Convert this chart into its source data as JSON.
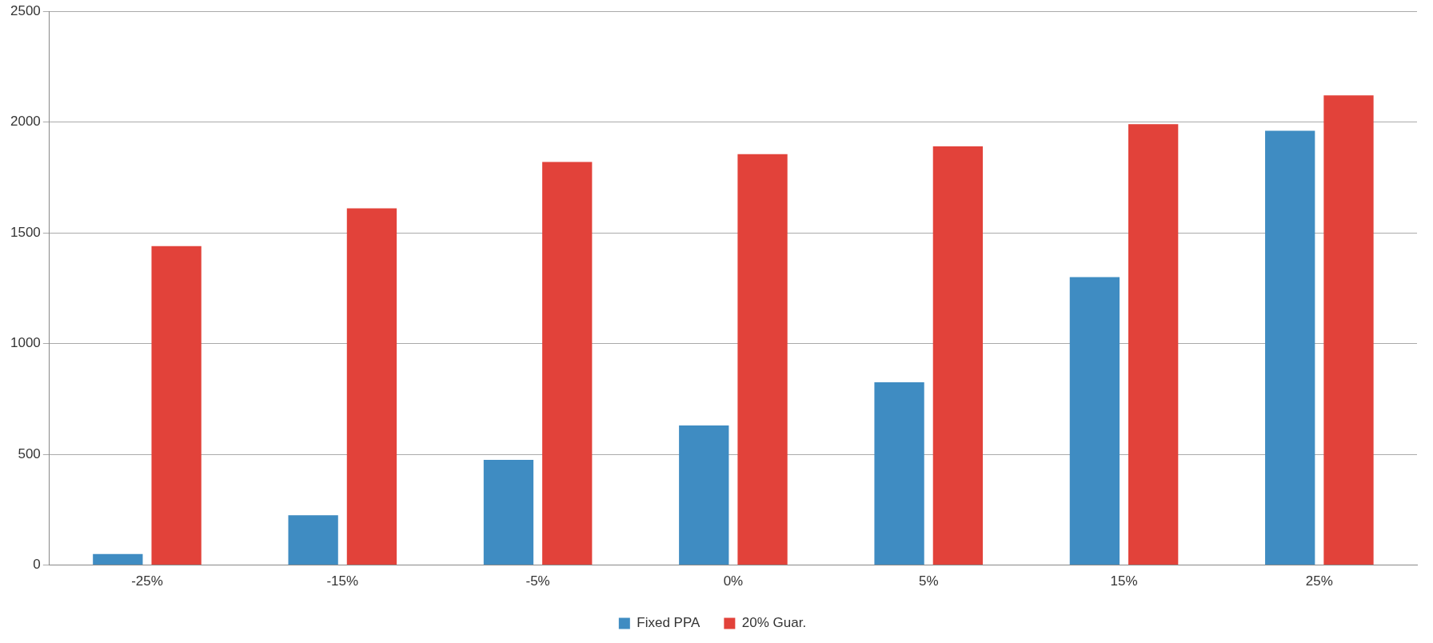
{
  "chart_data": {
    "type": "bar",
    "categories": [
      "-25%",
      "-15%",
      "-5%",
      "0%",
      "5%",
      "15%",
      "25%"
    ],
    "series": [
      {
        "name": "Fixed PPA",
        "color": "#3f8cc2",
        "values": [
          50,
          225,
          475,
          630,
          825,
          1300,
          1960
        ]
      },
      {
        "name": "20% Guar.",
        "color": "#e2423a",
        "values": [
          1440,
          1610,
          1820,
          1855,
          1890,
          1990,
          2120
        ]
      }
    ],
    "ylim": [
      0,
      2500
    ],
    "yticks": [
      0,
      500,
      1000,
      1500,
      2000,
      2500
    ],
    "grid": "y",
    "legend": "bottom"
  }
}
